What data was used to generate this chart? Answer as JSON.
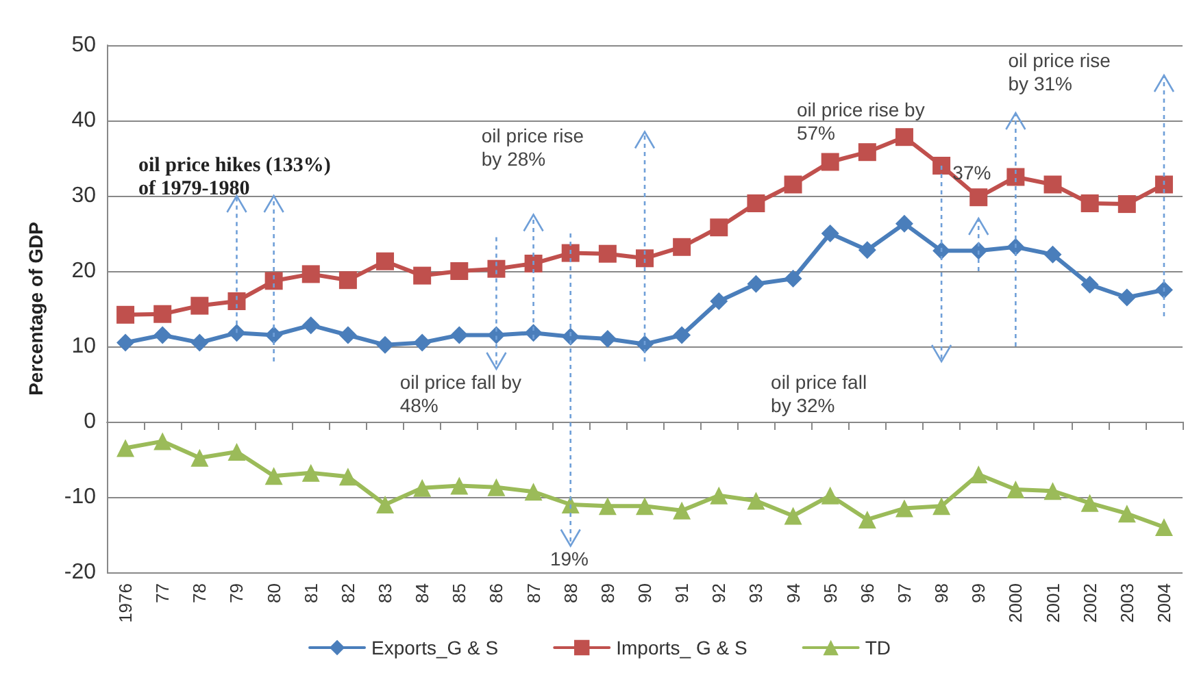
{
  "chart_data": {
    "type": "line",
    "ylabel": "Percentage of GDP",
    "categories": [
      "1976",
      "77",
      "78",
      "79",
      "80",
      "81",
      "82",
      "83",
      "84",
      "85",
      "86",
      "87",
      "88",
      "89",
      "90",
      "91",
      "92",
      "93",
      "94",
      "95",
      "96",
      "97",
      "98",
      "99",
      "2000",
      "2001",
      "2002",
      "2003",
      "2004"
    ],
    "series": [
      {
        "name": "Exports_G & S",
        "color": "#4a7ebb",
        "marker": "diamond",
        "values": [
          10.5,
          11.5,
          10.5,
          11.8,
          11.5,
          12.8,
          11.5,
          10.2,
          10.5,
          11.5,
          11.5,
          11.8,
          11.3,
          11,
          10.3,
          11.5,
          16,
          18.3,
          19,
          25,
          22.8,
          26.3,
          22.7,
          22.7,
          23.2,
          22.2,
          18.2,
          16.5,
          17.5
        ]
      },
      {
        "name": "Imports_ G & S",
        "color": "#c0504d",
        "marker": "square",
        "values": [
          14.2,
          14.3,
          15.4,
          16,
          18.7,
          19.6,
          18.8,
          21.3,
          19.4,
          20,
          20.3,
          21,
          22.4,
          22.3,
          21.7,
          23.2,
          25.8,
          29,
          31.5,
          34.5,
          35.8,
          37.8,
          34,
          29.8,
          32.5,
          31.5,
          29,
          28.9,
          31.5
        ]
      },
      {
        "name": "TD",
        "color": "#9bbb59",
        "marker": "triangle",
        "values": [
          -3.5,
          -2.6,
          -4.8,
          -4,
          -7.2,
          -6.8,
          -7.3,
          -11,
          -8.8,
          -8.5,
          -8.7,
          -9.3,
          -11,
          -11.2,
          -11.2,
          -11.8,
          -9.8,
          -10.5,
          -12.5,
          -9.8,
          -13,
          -11.5,
          -11.2,
          -7,
          -9,
          -9.2,
          -10.8,
          -12.2,
          -14
        ]
      }
    ],
    "ylim": [
      -20,
      50
    ],
    "yticks": [
      -20,
      -10,
      0,
      10,
      20,
      30,
      40,
      50
    ],
    "grid": "y",
    "legend": "bottom",
    "annotations": [
      {
        "text": "oil price hikes (133%) of 1979-1980",
        "x": "79",
        "y": 11.8
      },
      "oil price rise by 28%",
      "oil price fall by 48%",
      "19%",
      "oil price rise by 57%",
      "37%",
      "oil price fall by 32%",
      "oil price rise by 31%"
    ]
  }
}
